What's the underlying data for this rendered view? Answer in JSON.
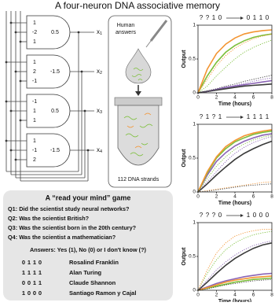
{
  "title": "A four-neuron DNA associative memory",
  "circuit": {
    "gates": [
      {
        "weights": [
          1,
          -2,
          1
        ],
        "threshold": 0.5,
        "output": {
          "var": "x",
          "sub": 1
        }
      },
      {
        "weights": [
          1,
          2,
          -1
        ],
        "threshold": -1.5,
        "output": {
          "var": "x",
          "sub": 2
        }
      },
      {
        "weights": [
          -1,
          1,
          1
        ],
        "threshold": 0.5,
        "output": {
          "var": "x",
          "sub": 3
        }
      },
      {
        "weights": [
          1,
          -1,
          2
        ],
        "threshold": -1.5,
        "output": {
          "var": "x",
          "sub": 4
        }
      }
    ]
  },
  "tube": {
    "label_lines": [
      "Human",
      "answers"
    ],
    "strands": "112 DNA strands"
  },
  "game": {
    "title": "A “read your mind” game",
    "colors": [
      "#8a63b5",
      "#7cbf3a",
      "#f39533",
      "#3a3a3a"
    ],
    "questions": [
      "Q1: Did the scientist study neural networks?",
      "Q2: Was the scientist British?",
      "Q3: Was the scientist born in the 20th century?",
      "Q4: Was the scientist a mathematician?"
    ],
    "answers_prompt": "Answers: Yes (1), No (0) or I don't know (?)",
    "scientists": [
      {
        "code": [
          "0",
          "1",
          "1",
          "0"
        ],
        "name": "Rosalind Franklin"
      },
      {
        "code": [
          "1",
          "1",
          "1",
          "1"
        ],
        "name": "Alan Turing"
      },
      {
        "code": [
          "0",
          "0",
          "1",
          "1"
        ],
        "name": "Claude Shannon"
      },
      {
        "code": [
          "1",
          "0",
          "0",
          "0"
        ],
        "name": "Santiago Ramon y Cajal"
      }
    ]
  },
  "chart_data": [
    {
      "type": "line",
      "input": [
        "?",
        "?",
        "1",
        "0"
      ],
      "output": [
        "0",
        "1",
        "1",
        "0"
      ],
      "xlabel": "Time (hours)",
      "ylabel": "Output",
      "x": [
        0,
        1,
        2,
        3,
        4,
        5,
        6,
        7,
        8
      ],
      "xlim": [
        0,
        8
      ],
      "ylim": [
        0,
        1
      ],
      "xticks": [
        0,
        2,
        4,
        6,
        8
      ],
      "yticks": [
        0,
        0.5,
        1
      ],
      "series": [
        {
          "color": "#8a63b5",
          "style": "solid",
          "values": [
            0,
            0.02,
            0.05,
            0.08,
            0.1,
            0.12,
            0.14,
            0.16,
            0.18
          ]
        },
        {
          "color": "#7cbf3a",
          "style": "solid",
          "values": [
            0,
            0.25,
            0.45,
            0.6,
            0.7,
            0.77,
            0.82,
            0.85,
            0.87
          ]
        },
        {
          "color": "#f39533",
          "style": "solid",
          "values": [
            0,
            0.35,
            0.58,
            0.72,
            0.81,
            0.87,
            0.9,
            0.92,
            0.93
          ]
        },
        {
          "color": "#3a3a3a",
          "style": "solid",
          "values": [
            0,
            0.02,
            0.04,
            0.06,
            0.08,
            0.1,
            0.11,
            0.12,
            0.13
          ]
        },
        {
          "color": "#8a63b5",
          "style": "dotted",
          "values": [
            0,
            0.02,
            0.05,
            0.08,
            0.11,
            0.14,
            0.17,
            0.2,
            0.22
          ]
        },
        {
          "color": "#7cbf3a",
          "style": "dotted",
          "values": [
            0,
            0.1,
            0.25,
            0.38,
            0.5,
            0.6,
            0.67,
            0.73,
            0.78
          ]
        },
        {
          "color": "#f39533",
          "style": "dotted",
          "values": [
            0,
            0.2,
            0.4,
            0.55,
            0.66,
            0.74,
            0.8,
            0.84,
            0.87
          ]
        },
        {
          "color": "#3a3a3a",
          "style": "dotted",
          "values": [
            0,
            0.03,
            0.06,
            0.1,
            0.13,
            0.17,
            0.2,
            0.23,
            0.26
          ]
        }
      ]
    },
    {
      "type": "line",
      "input": [
        "?",
        "1",
        "?",
        "1"
      ],
      "output": [
        "1",
        "1",
        "1",
        "1"
      ],
      "xlabel": "Time (hours)",
      "ylabel": "Output",
      "x": [
        0,
        1,
        2,
        3,
        4,
        5,
        6,
        7,
        8
      ],
      "xlim": [
        0,
        8
      ],
      "ylim": [
        0,
        1
      ],
      "xticks": [
        0,
        2,
        4,
        6,
        8
      ],
      "yticks": [
        0,
        0.5,
        1
      ],
      "series": [
        {
          "color": "#8a63b5",
          "style": "solid",
          "values": [
            0,
            0.25,
            0.45,
            0.58,
            0.68,
            0.75,
            0.8,
            0.84,
            0.86
          ]
        },
        {
          "color": "#7cbf3a",
          "style": "solid",
          "values": [
            0,
            0.28,
            0.5,
            0.64,
            0.74,
            0.8,
            0.85,
            0.88,
            0.9
          ]
        },
        {
          "color": "#f39533",
          "style": "solid",
          "values": [
            0,
            0.3,
            0.52,
            0.67,
            0.76,
            0.83,
            0.87,
            0.9,
            0.92
          ]
        },
        {
          "color": "#3a3a3a",
          "style": "solid",
          "values": [
            0,
            0.12,
            0.25,
            0.37,
            0.48,
            0.57,
            0.64,
            0.7,
            0.75
          ]
        },
        {
          "color": "#8a63b5",
          "style": "dotted",
          "values": [
            0,
            0.15,
            0.3,
            0.45,
            0.57,
            0.66,
            0.73,
            0.78,
            0.82
          ]
        },
        {
          "color": "#7cbf3a",
          "style": "dotted",
          "values": [
            0,
            0.2,
            0.38,
            0.52,
            0.63,
            0.71,
            0.77,
            0.81,
            0.84
          ]
        },
        {
          "color": "#f39533",
          "style": "dotted",
          "values": [
            0,
            0.02,
            0.04,
            0.06,
            0.08,
            0.1,
            0.12,
            0.14,
            0.15
          ]
        },
        {
          "color": "#3a3a3a",
          "style": "dotted",
          "values": [
            0,
            0.01,
            0.03,
            0.05,
            0.07,
            0.09,
            0.1,
            0.11,
            0.12
          ]
        }
      ]
    },
    {
      "type": "line",
      "input": [
        "?",
        "?",
        "?",
        "0"
      ],
      "output": [
        "1",
        "0",
        "0",
        "0"
      ],
      "xlabel": "Time (hours)",
      "ylabel": "Output",
      "x": [
        0,
        1,
        2,
        3,
        4,
        5,
        6,
        7,
        8
      ],
      "xlim": [
        0,
        8
      ],
      "ylim": [
        0,
        1
      ],
      "xticks": [
        0,
        2,
        4,
        6,
        8
      ],
      "yticks": [
        0,
        0.5,
        1
      ],
      "series": [
        {
          "color": "#8a63b5",
          "style": "solid",
          "values": [
            0,
            0.05,
            0.1,
            0.14,
            0.17,
            0.2,
            0.22,
            0.24,
            0.25
          ]
        },
        {
          "color": "#7cbf3a",
          "style": "solid",
          "values": [
            0,
            0.03,
            0.06,
            0.09,
            0.12,
            0.14,
            0.16,
            0.17,
            0.18
          ]
        },
        {
          "color": "#f39533",
          "style": "solid",
          "values": [
            0,
            0.04,
            0.08,
            0.12,
            0.15,
            0.17,
            0.19,
            0.2,
            0.21
          ]
        },
        {
          "color": "#3a3a3a",
          "style": "solid",
          "values": [
            0,
            0.12,
            0.25,
            0.37,
            0.47,
            0.55,
            0.62,
            0.67,
            0.7
          ]
        },
        {
          "color": "#8a63b5",
          "style": "dotted",
          "values": [
            0,
            0.15,
            0.3,
            0.42,
            0.52,
            0.6,
            0.66,
            0.7,
            0.73
          ]
        },
        {
          "color": "#7cbf3a",
          "style": "dotted",
          "values": [
            0,
            0.25,
            0.45,
            0.6,
            0.7,
            0.77,
            0.82,
            0.85,
            0.87
          ]
        },
        {
          "color": "#f39533",
          "style": "dotted",
          "values": [
            0,
            0.3,
            0.55,
            0.7,
            0.8,
            0.85,
            0.88,
            0.9,
            0.9
          ]
        },
        {
          "color": "#3a3a3a",
          "style": "dotted",
          "values": [
            0,
            0.02,
            0.05,
            0.08,
            0.1,
            0.12,
            0.14,
            0.15,
            0.16
          ]
        }
      ]
    }
  ]
}
